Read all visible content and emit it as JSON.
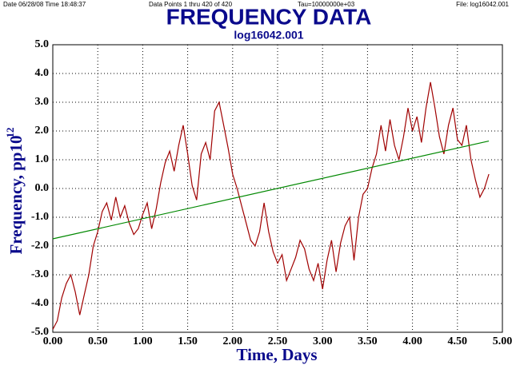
{
  "chart_data": {
    "type": "line",
    "header": [
      "Date  06/28/08  Time  18:48:37",
      "Data Points 1 thru 420 of 420",
      "Tau=10000000e+03",
      "File: log16042.001"
    ],
    "title": "FREQUENCY DATA",
    "subtitle": "log16042.001",
    "xlabel": "Time, Days",
    "ylabel": "Frequency, pp10",
    "ylabel_exponent": "12",
    "color": "#a00000",
    "x": [
      0,
      0.05,
      0.1,
      0.15,
      0.2,
      0.25,
      0.3,
      0.35,
      0.4,
      0.45,
      0.5,
      0.55,
      0.6,
      0.65,
      0.7,
      0.75,
      0.8,
      0.85,
      0.9,
      0.95,
      1.0,
      1.05,
      1.1,
      1.15,
      1.2,
      1.25,
      1.3,
      1.35,
      1.4,
      1.45,
      1.5,
      1.55,
      1.6,
      1.65,
      1.7,
      1.75,
      1.8,
      1.85,
      1.9,
      1.95,
      2.0,
      2.05,
      2.1,
      2.15,
      2.2,
      2.25,
      2.3,
      2.35,
      2.4,
      2.45,
      2.5,
      2.55,
      2.6,
      2.65,
      2.7,
      2.75,
      2.8,
      2.85,
      2.9,
      2.95,
      3.0,
      3.05,
      3.1,
      3.15,
      3.2,
      3.25,
      3.3,
      3.35,
      3.4,
      3.45,
      3.5,
      3.55,
      3.6,
      3.65,
      3.7,
      3.75,
      3.8,
      3.85,
      3.9,
      3.95,
      4.0,
      4.05,
      4.1,
      4.15,
      4.2,
      4.25,
      4.3,
      4.35,
      4.4,
      4.45,
      4.5,
      4.55,
      4.6,
      4.65,
      4.7,
      4.75,
      4.8,
      4.85
    ],
    "values": [
      -4.9,
      -4.6,
      -3.8,
      -3.3,
      -3.0,
      -3.6,
      -4.4,
      -3.7,
      -3.0,
      -2.0,
      -1.5,
      -0.8,
      -0.5,
      -1.1,
      -0.3,
      -1.0,
      -0.6,
      -1.2,
      -1.6,
      -1.4,
      -0.9,
      -0.5,
      -1.4,
      -0.7,
      0.2,
      0.9,
      1.3,
      0.6,
      1.5,
      2.2,
      1.2,
      0.1,
      -0.4,
      1.2,
      1.6,
      1.0,
      2.7,
      3.0,
      2.2,
      1.4,
      0.5,
      0.0,
      -0.6,
      -1.2,
      -1.8,
      -2.0,
      -1.5,
      -0.5,
      -1.5,
      -2.2,
      -2.6,
      -2.3,
      -3.2,
      -2.8,
      -2.4,
      -1.8,
      -2.1,
      -2.8,
      -3.2,
      -2.6,
      -3.5,
      -2.5,
      -1.8,
      -2.9,
      -1.9,
      -1.3,
      -1.0,
      -2.5,
      -1.0,
      -0.2,
      0.0,
      0.7,
      1.2,
      2.2,
      1.3,
      2.4,
      1.5,
      1.0,
      1.8,
      2.8,
      2.0,
      2.5,
      1.6,
      2.8,
      3.7,
      2.8,
      1.8,
      1.2,
      2.2,
      2.8,
      1.7,
      1.5,
      2.2,
      1.0,
      0.3,
      -0.3,
      0.0,
      0.5
    ],
    "fit": {
      "x": [
        0,
        4.85
      ],
      "values": [
        -1.75,
        1.65
      ],
      "color": "#008800"
    },
    "xlim": [
      0,
      5
    ],
    "ylim": [
      -5,
      5
    ],
    "grid": true,
    "xticks": [
      {
        "value": 0,
        "label": "0.00"
      },
      {
        "value": 0.5,
        "label": "0.50"
      },
      {
        "value": 1,
        "label": "1.00"
      },
      {
        "value": 1.5,
        "label": "1.50"
      },
      {
        "value": 2,
        "label": "2.00"
      },
      {
        "value": 2.5,
        "label": "2.50"
      },
      {
        "value": 3,
        "label": "3.00"
      },
      {
        "value": 3.5,
        "label": "3.50"
      },
      {
        "value": 4,
        "label": "4.00"
      },
      {
        "value": 4.5,
        "label": "4.50"
      },
      {
        "value": 5,
        "label": "5.00"
      }
    ],
    "yticks": [
      {
        "value": 5,
        "label": "5.0"
      },
      {
        "value": 4,
        "label": "4.0"
      },
      {
        "value": 3,
        "label": "3.0"
      },
      {
        "value": 2,
        "label": "2.0"
      },
      {
        "value": 1,
        "label": "1.0"
      },
      {
        "value": 0,
        "label": "0.0"
      },
      {
        "value": -1,
        "label": "-1.0"
      },
      {
        "value": -2,
        "label": "-2.0"
      },
      {
        "value": -3,
        "label": "-3.0"
      },
      {
        "value": -4,
        "label": "-4.0"
      },
      {
        "value": -5,
        "label": "-5.0"
      }
    ]
  }
}
